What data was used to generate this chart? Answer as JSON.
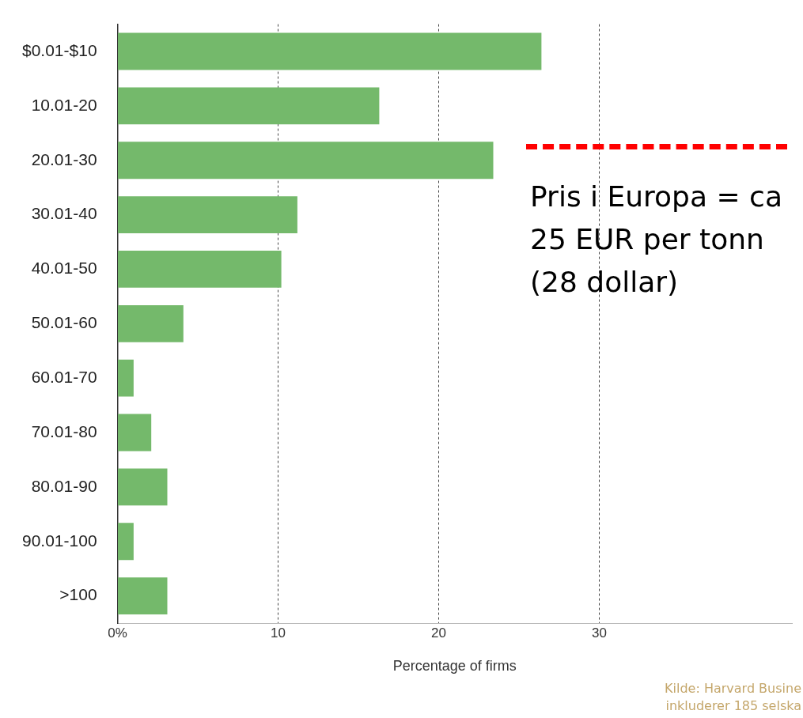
{
  "chart_data": {
    "type": "bar",
    "orientation": "horizontal",
    "xlabel": "Percentage of firms",
    "categories": [
      "$0.01-$10",
      "10.01-20",
      "20.01-30",
      "30.01-40",
      "40.01-50",
      "50.01-60",
      "60.01-70",
      "70.01-80",
      "80.01-90",
      "90.01-100",
      ">100"
    ],
    "values": [
      26.4,
      16.3,
      23.4,
      11.2,
      10.2,
      4.1,
      1.0,
      2.1,
      3.1,
      1.0,
      3.1
    ],
    "color": "#74b96b",
    "xlim": [
      0,
      42
    ],
    "xticks": [
      {
        "value": 0,
        "label": "0%"
      },
      10,
      20,
      30
    ],
    "grid": "x",
    "annotations": [
      "Pris i Europa = ca 25 EUR per tonn (28 dollar)",
      "Kilde: Harvard Busine",
      "inkluderer 185 selska"
    ]
  }
}
